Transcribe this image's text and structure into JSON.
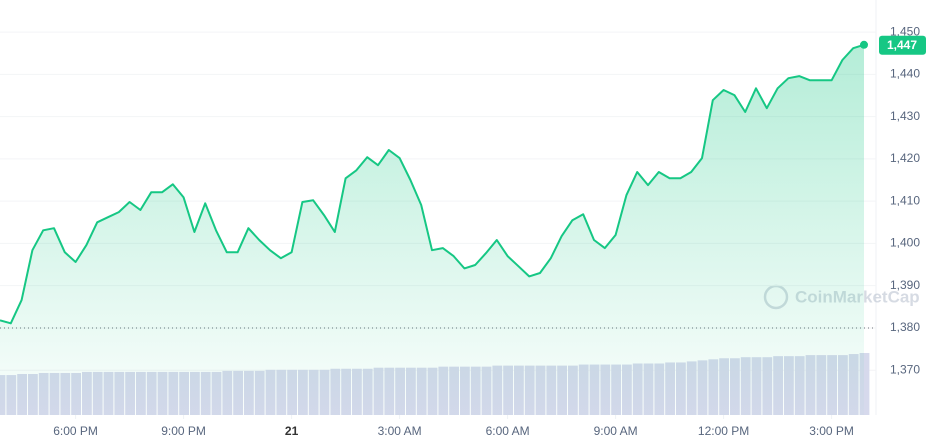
{
  "chart_data": {
    "type": "line",
    "watermark": "CoinMarketCap",
    "series": [
      {
        "color": "#16c784",
        "values": [
          1381.8,
          1381.1,
          1386.6,
          1398.4,
          1403.1,
          1403.6,
          1397.9,
          1395.6,
          1399.6,
          1405.0,
          1406.2,
          1407.4,
          1409.8,
          1407.9,
          1412.1,
          1412.1,
          1414.0,
          1410.9,
          1402.7,
          1409.5,
          1403.1,
          1397.9,
          1397.9,
          1403.6,
          1400.8,
          1398.4,
          1396.5,
          1397.9,
          1409.8,
          1410.2,
          1406.7,
          1402.7,
          1415.4,
          1417.3,
          1420.4,
          1418.5,
          1422.1,
          1420.2,
          1415.0,
          1409.1,
          1398.4,
          1398.9,
          1397.0,
          1394.1,
          1394.9,
          1397.7,
          1400.8,
          1397.0,
          1394.6,
          1392.2,
          1393.0,
          1396.5,
          1401.7,
          1405.5,
          1406.9,
          1400.8,
          1398.9,
          1402.0,
          1411.4,
          1416.9,
          1413.8,
          1416.9,
          1415.4,
          1415.4,
          1416.9,
          1420.2,
          1433.9,
          1436.3,
          1435.1,
          1431.1,
          1436.7,
          1432.0,
          1436.7,
          1439.1,
          1439.6,
          1438.6,
          1438.6,
          1438.6,
          1443.4,
          1446.2,
          1447
        ],
        "value_labels": [
          null,
          null,
          null,
          null,
          null,
          null,
          null,
          null,
          null,
          null,
          null,
          null,
          null,
          null,
          null,
          null,
          null,
          null,
          null,
          null,
          null,
          null,
          null,
          null,
          null,
          null,
          null,
          null,
          null,
          null,
          null,
          null,
          null,
          null,
          null,
          null,
          null,
          null,
          null,
          null,
          null,
          null,
          null,
          null,
          null,
          null,
          null,
          null,
          null,
          null,
          null,
          null,
          null,
          null,
          null,
          null,
          null,
          null,
          null,
          null,
          null,
          null,
          null,
          null,
          null,
          null,
          null,
          null,
          null,
          null,
          null,
          null,
          null,
          null,
          null,
          null,
          null,
          null,
          null,
          null,
          "1,447"
        ]
      }
    ],
    "volume": [
      38,
      38,
      39,
      39,
      40,
      40,
      40,
      40,
      41,
      41,
      41,
      41,
      41,
      41,
      41,
      41,
      41,
      41,
      41,
      41,
      41,
      42,
      42,
      42,
      42,
      43,
      43,
      43,
      43,
      43,
      43,
      44,
      44,
      44,
      44,
      45,
      45,
      45,
      45,
      45,
      45,
      46,
      46,
      46,
      46,
      46,
      47,
      47,
      47,
      47,
      47,
      47,
      47,
      47,
      48,
      48,
      48,
      48,
      48,
      49,
      49,
      49,
      50,
      50,
      51,
      52,
      53,
      54,
      54,
      55,
      55,
      55,
      56,
      56,
      56,
      57,
      57,
      57,
      57,
      58,
      59
    ],
    "volume_color": "#d6d9ec",
    "baseline": 1380,
    "xlim": [
      0,
      80
    ],
    "xticks": [
      {
        "value": 7,
        "label": "6:00 PM"
      },
      {
        "value": 17,
        "label": "9:00 PM"
      },
      {
        "value": 27,
        "label": "21"
      },
      {
        "value": 37,
        "label": "3:00 AM"
      },
      {
        "value": 47,
        "label": "6:00 AM"
      },
      {
        "value": 57,
        "label": "9:00 AM"
      },
      {
        "value": 67,
        "label": "12:00 PM"
      },
      {
        "value": 77,
        "label": "3:00 PM"
      }
    ],
    "ylim": [
      1359.4,
      1457.6
    ],
    "yticks": [
      {
        "value": 1450,
        "label": "1,450"
      },
      {
        "value": 1440,
        "label": "1,440"
      },
      {
        "value": 1430,
        "label": "1,430"
      },
      {
        "value": 1420,
        "label": "1,420"
      },
      {
        "value": 1410,
        "label": "1,410"
      },
      {
        "value": 1400,
        "label": "1,400"
      },
      {
        "value": 1390,
        "label": "1,390"
      },
      {
        "value": 1380,
        "label": "1,380"
      },
      {
        "value": 1370,
        "label": "1,370"
      }
    ],
    "grid": true
  }
}
